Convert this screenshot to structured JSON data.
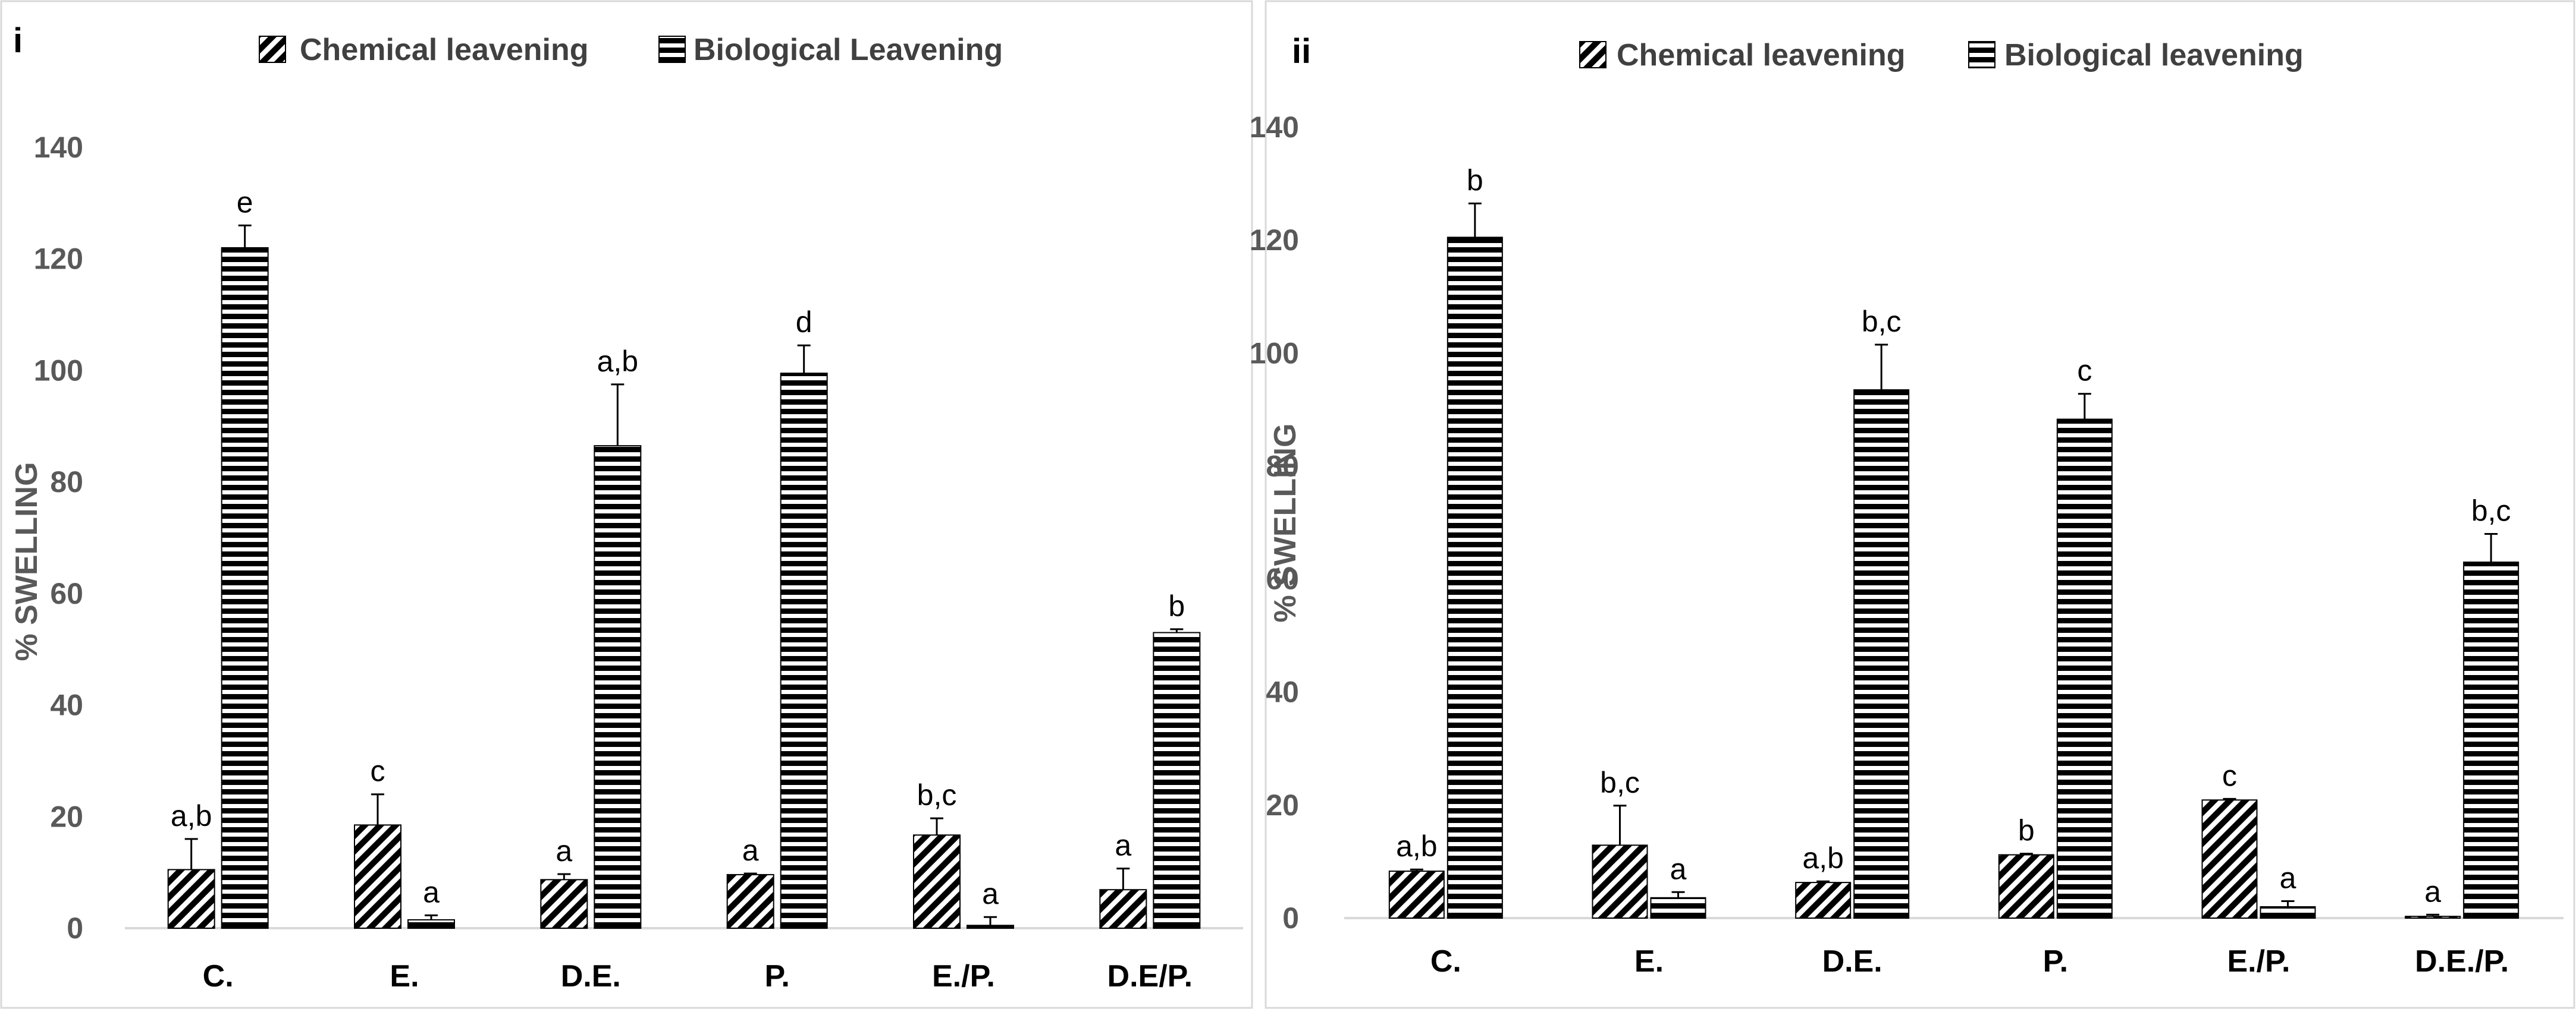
{
  "chart_data": [
    {
      "type": "bar",
      "panel_label": "i",
      "ylabel": "% SWELLING",
      "ylim": [
        0,
        140
      ],
      "yticks": [
        "0",
        "20",
        "40",
        "60",
        "80",
        "100",
        "120",
        "140"
      ],
      "categories": [
        "C.",
        "E.",
        "D.E.",
        "P.",
        "E./P.",
        "D.E/P."
      ],
      "legend": [
        "Chemical leavening",
        "Biological Leavening"
      ],
      "legend_position": "top",
      "series": [
        {
          "name": "Chemical leavening",
          "pattern": "diagonal",
          "values": [
            10.5,
            18.5,
            8.7,
            9.6,
            16.7,
            6.9
          ],
          "errors": [
            5.5,
            5.5,
            1.0,
            0.2,
            3.0,
            3.8
          ],
          "labels": [
            "a,b",
            "c",
            "a",
            "a",
            "b,c",
            "a"
          ]
        },
        {
          "name": "Biological Leavening",
          "pattern": "horizontal",
          "values": [
            122,
            1.5,
            86.5,
            99.5,
            0.5,
            53
          ],
          "errors": [
            4,
            0.8,
            11,
            5,
            1.5,
            0.6
          ],
          "labels": [
            "e",
            "a",
            "a,b",
            "d",
            "a",
            "b"
          ]
        }
      ]
    },
    {
      "type": "bar",
      "panel_label": "ii",
      "ylabel": "% SWELLING",
      "ylim": [
        0,
        140
      ],
      "yticks": [
        "0",
        "20",
        "40",
        "60",
        "80",
        "100",
        "120",
        "140"
      ],
      "categories": [
        "C.",
        "E.",
        "D.E.",
        "P.",
        "E./P.",
        "D.E./P."
      ],
      "legend": [
        "Chemical leavening",
        "Biological leavening"
      ],
      "legend_position": "top",
      "series": [
        {
          "name": "Chemical leavening",
          "pattern": "diagonal",
          "values": [
            8.3,
            12.9,
            6.3,
            11.2,
            20.9,
            0.3
          ],
          "errors": [
            0.3,
            7.0,
            0.2,
            0.2,
            0.2,
            0.3
          ],
          "labels": [
            "a,b",
            "b,c",
            "a,b",
            "b",
            "c",
            "a"
          ]
        },
        {
          "name": "Biological leavening",
          "pattern": "horizontal",
          "values": [
            120.5,
            3.6,
            93.5,
            88.3,
            2.0,
            63
          ],
          "errors": [
            6,
            1.0,
            8,
            4.5,
            1.0,
            5
          ],
          "labels": [
            "b",
            "a",
            "b,c",
            "c",
            "a",
            "b,c"
          ]
        }
      ]
    }
  ]
}
